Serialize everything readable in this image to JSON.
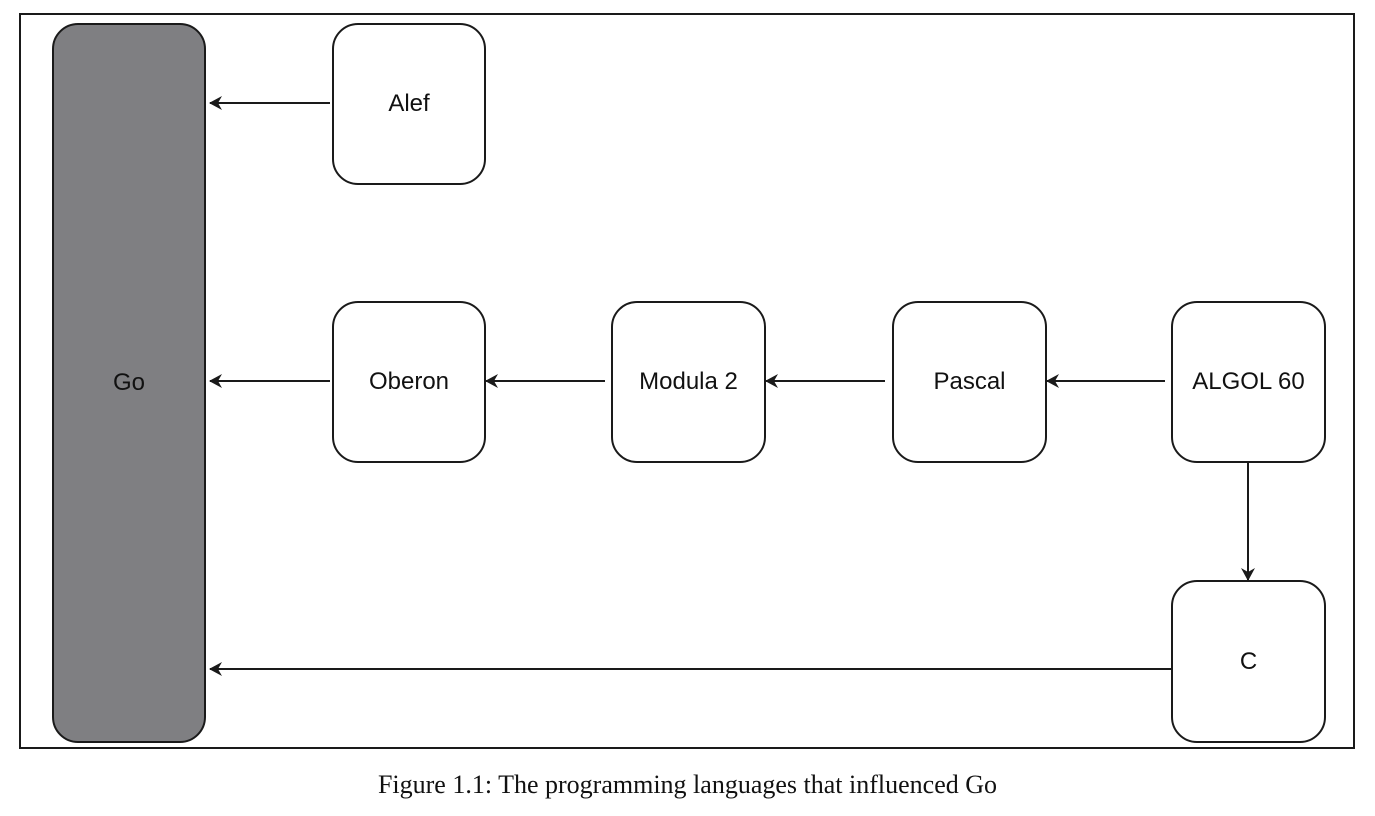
{
  "diagram": {
    "nodes": {
      "go": "Go",
      "alef": "Alef",
      "oberon": "Oberon",
      "modula2": "Modula 2",
      "pascal": "Pascal",
      "algol60": "ALGOL 60",
      "c": "C"
    },
    "edges": [
      {
        "from": "alef",
        "to": "go"
      },
      {
        "from": "oberon",
        "to": "go"
      },
      {
        "from": "modula2",
        "to": "oberon"
      },
      {
        "from": "pascal",
        "to": "modula2"
      },
      {
        "from": "algol60",
        "to": "pascal"
      },
      {
        "from": "algol60",
        "to": "c"
      },
      {
        "from": "c",
        "to": "go"
      }
    ],
    "colors": {
      "go_fill": "#7f7f82",
      "node_fill": "#ffffff",
      "stroke": "#1a1a1a"
    }
  },
  "caption": "Figure 1.1: The programming languages that influenced Go"
}
